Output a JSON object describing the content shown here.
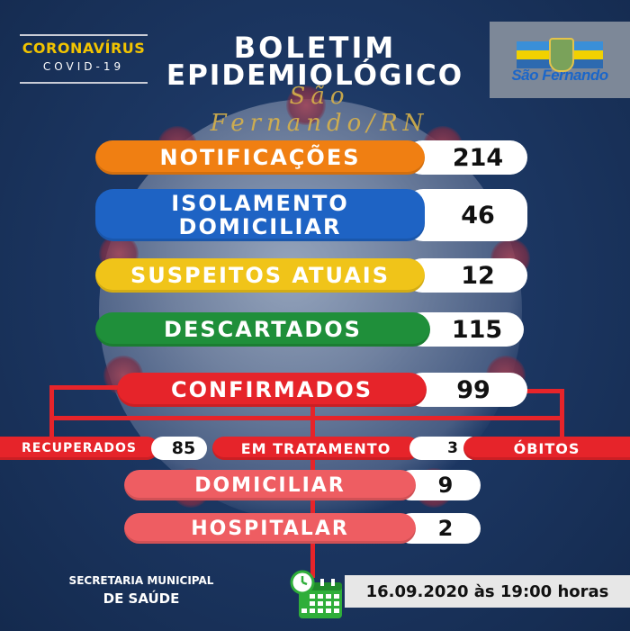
{
  "header": {
    "corona_title": "CORONAVÍRUS",
    "corona_sub": "COVID-19",
    "title_line1": "BOLETIM",
    "title_line2": "EPIDEMIOLÓGICO",
    "title_line3": "São Fernando/RN",
    "logo_text": "São Fernando"
  },
  "stats": {
    "notificacoes": {
      "label": "NOTIFICAÇÕES",
      "value": "214",
      "color": "#f07f12"
    },
    "isolamento": {
      "label_1": "ISOLAMENTO",
      "label_2": "DOMICILIAR",
      "value": "46",
      "color": "#1e63c4"
    },
    "suspeitos": {
      "label": "SUSPEITOS ATUAIS",
      "value": "12",
      "color": "#f0c419"
    },
    "descartados": {
      "label": "DESCARTADOS",
      "value": "115",
      "color": "#1f8f3a"
    },
    "confirmados": {
      "label": "CONFIRMADOS",
      "value": "99",
      "color": "#e6242a"
    },
    "recuperados": {
      "label": "RECUPERADOS",
      "value": "85"
    },
    "em_tratamento": {
      "label": "EM TRATAMENTO",
      "value": "3"
    },
    "obitos": {
      "label": "ÓBITOS"
    },
    "domiciliar": {
      "label": "DOMICILIAR",
      "value": "9",
      "color": "#ee5d62"
    },
    "hospitalar": {
      "label": "HOSPITALAR",
      "value": "2",
      "color": "#ee5d62"
    }
  },
  "footer": {
    "secretaria_line1": "SECRETARIA MUNICIPAL",
    "secretaria_line2": "DE SAÚDE",
    "datetime": "16.09.2020 às 19:00 horas"
  }
}
